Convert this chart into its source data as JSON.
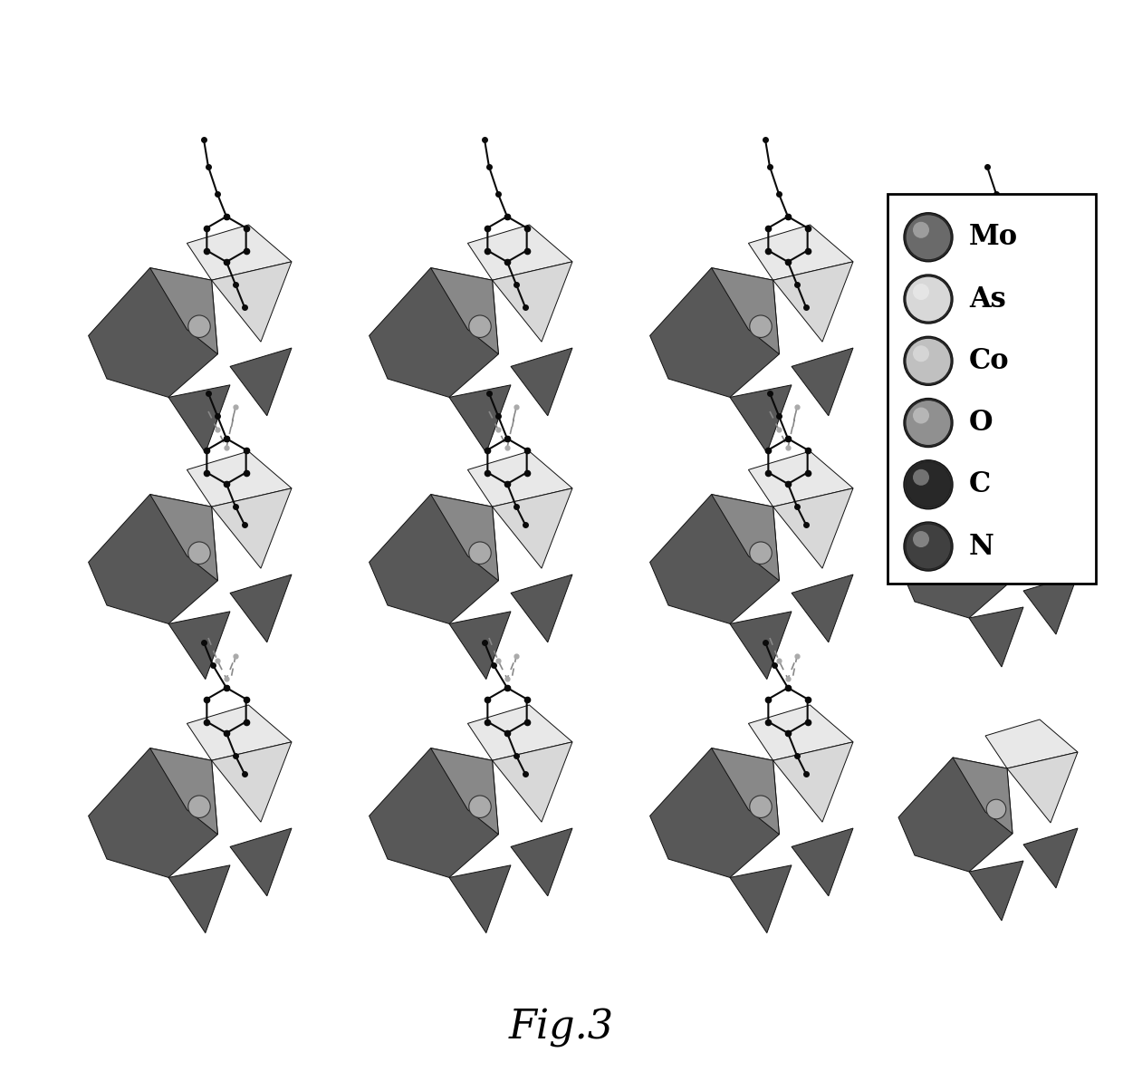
{
  "title": "Fig.3",
  "title_fontsize": 32,
  "title_fontstyle": "italic",
  "background_color": "#ffffff",
  "legend": {
    "items": [
      "Mo",
      "As",
      "Co",
      "O",
      "C",
      "N"
    ],
    "colors": [
      "#6a6a6a",
      "#d8d8d8",
      "#c0c0c0",
      "#909090",
      "#282828",
      "#404040"
    ],
    "border_color": "#000000"
  },
  "structure": {
    "dark_poly": "#585858",
    "medium_poly": "#888888",
    "light_poly": "#d8d8d8",
    "very_light_poly": "#e8e8e8",
    "node_color": "#0a0a0a",
    "bond_color": "#0a0a0a",
    "dash_color": "#888888"
  }
}
